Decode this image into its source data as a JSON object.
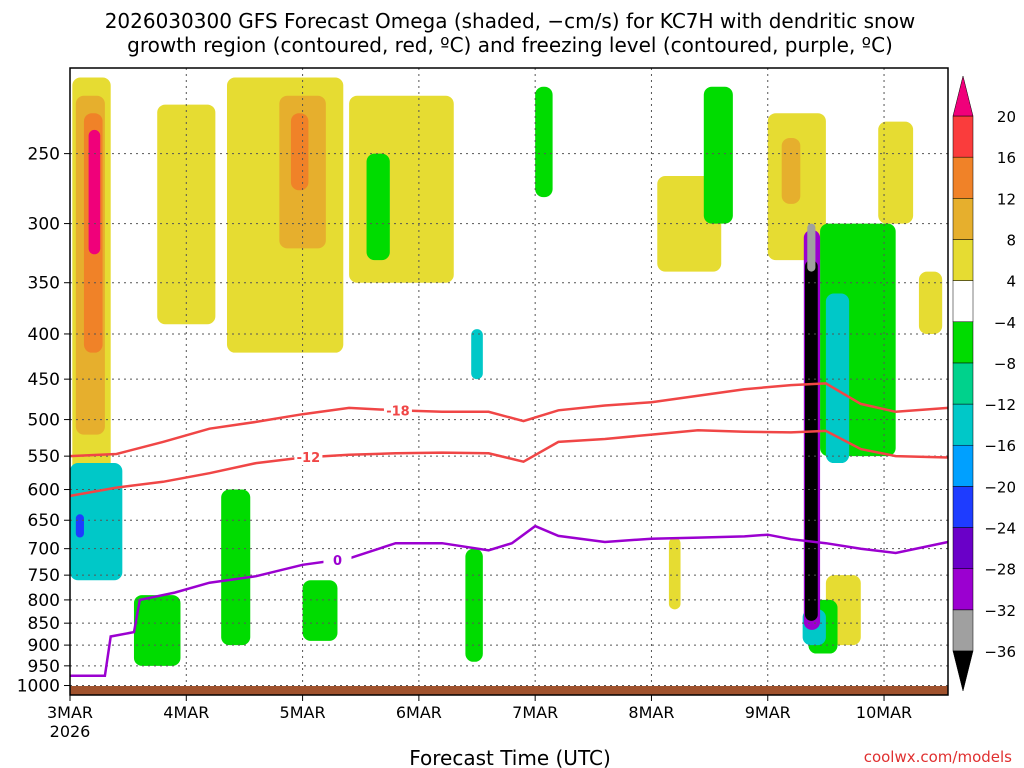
{
  "chart_data": {
    "type": "heatmap",
    "title_line1": "2026030300 GFS Forecast Omega (shaded, −cm/s) for KC7H with dendritic snow",
    "title_line2": "growth region (contoured, red, ºC) and freezing level (contoured, purple, ºC)",
    "xlabel": "Forecast Time (UTC)",
    "ylabel": "",
    "credit": "coolwx.com/models",
    "x_ticks": [
      "3MAR",
      "4MAR",
      "5MAR",
      "6MAR",
      "7MAR",
      "8MAR",
      "9MAR",
      "10MAR"
    ],
    "x_year_label": "2026",
    "x_range_days": [
      0,
      7.55
    ],
    "y_ticks": [
      "250",
      "300",
      "350",
      "400",
      "450",
      "500",
      "550",
      "600",
      "650",
      "700",
      "750",
      "800",
      "850",
      "900",
      "950",
      "1000"
    ],
    "y_tick_values": [
      250,
      300,
      350,
      400,
      450,
      500,
      550,
      600,
      650,
      700,
      750,
      800,
      850,
      900,
      950,
      1000
    ],
    "y_range_hpa": [
      200,
      1025
    ],
    "colorbar": {
      "labels": [
        "20",
        "16",
        "12",
        "8",
        "4",
        "−4",
        "−8",
        "−12",
        "−16",
        "−20",
        "−24",
        "−28",
        "−32",
        "−36"
      ],
      "colors": [
        "#f0f0f0",
        "#a0a0a0",
        "#9b00d0",
        "#6a00c8",
        "#1e3cff",
        "#00a0ff",
        "#00c8c8",
        "#00d28c",
        "#00dc00",
        "#ffffff",
        "#e6dc32",
        "#e6af2d",
        "#f08228",
        "#fa3c3c",
        "#f0007a"
      ],
      "top_arrow_color": "#f0007a",
      "bottom_arrow_color": "#000000"
    },
    "contours": [
      {
        "name": "dgz-minus18",
        "color": "#f04646",
        "label": "-18",
        "label_day": 2.82,
        "points": [
          [
            0,
            550
          ],
          [
            0.4,
            547
          ],
          [
            0.8,
            530
          ],
          [
            1.2,
            512
          ],
          [
            1.6,
            503
          ],
          [
            2.0,
            493
          ],
          [
            2.4,
            485
          ],
          [
            2.8,
            488
          ],
          [
            3.2,
            490
          ],
          [
            3.6,
            490
          ],
          [
            3.9,
            502
          ],
          [
            4.2,
            488
          ],
          [
            4.6,
            482
          ],
          [
            5.0,
            478
          ],
          [
            5.4,
            470
          ],
          [
            5.8,
            462
          ],
          [
            6.2,
            457
          ],
          [
            6.5,
            455
          ],
          [
            6.8,
            480
          ],
          [
            7.1,
            490
          ],
          [
            7.55,
            485
          ]
        ]
      },
      {
        "name": "dgz-minus12",
        "color": "#f04646",
        "label": "-12",
        "label_day": 2.05,
        "points": [
          [
            0,
            610
          ],
          [
            0.4,
            597
          ],
          [
            0.8,
            588
          ],
          [
            1.2,
            575
          ],
          [
            1.6,
            560
          ],
          [
            2.0,
            552
          ],
          [
            2.4,
            548
          ],
          [
            2.8,
            546
          ],
          [
            3.2,
            545
          ],
          [
            3.6,
            546
          ],
          [
            3.9,
            558
          ],
          [
            4.2,
            530
          ],
          [
            4.6,
            526
          ],
          [
            5.0,
            520
          ],
          [
            5.4,
            514
          ],
          [
            5.8,
            516
          ],
          [
            6.2,
            517
          ],
          [
            6.5,
            515
          ],
          [
            6.8,
            540
          ],
          [
            7.1,
            550
          ],
          [
            7.55,
            552
          ]
        ]
      },
      {
        "name": "freezing-level",
        "color": "#9b00d0",
        "label": "0",
        "label_day": 2.3,
        "points": [
          [
            0,
            975
          ],
          [
            0.3,
            975
          ],
          [
            0.35,
            880
          ],
          [
            0.55,
            870
          ],
          [
            0.6,
            800
          ],
          [
            0.9,
            785
          ],
          [
            1.2,
            765
          ],
          [
            1.6,
            752
          ],
          [
            2.0,
            730
          ],
          [
            2.4,
            718
          ],
          [
            2.8,
            690
          ],
          [
            3.2,
            690
          ],
          [
            3.6,
            703
          ],
          [
            3.8,
            690
          ],
          [
            4.0,
            660
          ],
          [
            4.2,
            677
          ],
          [
            4.6,
            688
          ],
          [
            5.0,
            682
          ],
          [
            5.4,
            680
          ],
          [
            5.8,
            678
          ],
          [
            6.0,
            675
          ],
          [
            6.2,
            683
          ],
          [
            6.5,
            690
          ],
          [
            6.8,
            700
          ],
          [
            7.1,
            708
          ],
          [
            7.55,
            688
          ]
        ]
      }
    ],
    "shaded_regions": [
      {
        "name": "omega-d0-upper",
        "color": "#e6dc32",
        "d0": 0.02,
        "d1": 0.35,
        "p0": 205,
        "p1": 640
      },
      {
        "name": "omega-d0-core",
        "color": "#e6af2d",
        "d0": 0.05,
        "d1": 0.3,
        "p0": 215,
        "p1": 520
      },
      {
        "name": "omega-d0-peak",
        "color": "#f08228",
        "d0": 0.12,
        "d1": 0.28,
        "p0": 225,
        "p1": 420
      },
      {
        "name": "omega-d0-max",
        "color": "#f0007a",
        "d0": 0.16,
        "d1": 0.26,
        "p0": 235,
        "p1": 325
      },
      {
        "name": "omega-d1-upper",
        "color": "#e6dc32",
        "d0": 0.75,
        "d1": 1.25,
        "p0": 220,
        "p1": 390
      },
      {
        "name": "omega-d2-upper",
        "color": "#e6dc32",
        "d0": 1.35,
        "d1": 2.35,
        "p0": 205,
        "p1": 420
      },
      {
        "name": "omega-d2-core",
        "color": "#e6af2d",
        "d0": 1.8,
        "d1": 2.2,
        "p0": 215,
        "p1": 320
      },
      {
        "name": "omega-d2-peak",
        "color": "#f08228",
        "d0": 1.9,
        "d1": 2.05,
        "p0": 225,
        "p1": 275
      },
      {
        "name": "omega-d3-upper",
        "color": "#e6dc32",
        "d0": 2.4,
        "d1": 3.3,
        "p0": 215,
        "p1": 350
      },
      {
        "name": "omega-d5-upper",
        "color": "#e6dc32",
        "d0": 5.05,
        "d1": 5.6,
        "p0": 265,
        "p1": 340
      },
      {
        "name": "omega-d6-upper",
        "color": "#e6dc32",
        "d0": 6.0,
        "d1": 6.5,
        "p0": 225,
        "p1": 330
      },
      {
        "name": "omega-d6-core",
        "color": "#e6af2d",
        "d0": 6.12,
        "d1": 6.28,
        "p0": 240,
        "p1": 285
      },
      {
        "name": "omega-d7-upper",
        "color": "#e6dc32",
        "d0": 6.95,
        "d1": 7.25,
        "p0": 230,
        "p1": 300
      },
      {
        "name": "omega-d7-right",
        "color": "#e6dc32",
        "d0": 7.3,
        "d1": 7.5,
        "p0": 340,
        "p1": 400
      },
      {
        "name": "omega-d7-low",
        "color": "#e6dc32",
        "d0": 6.5,
        "d1": 6.8,
        "p0": 750,
        "p1": 900
      },
      {
        "name": "omega-d5-low",
        "color": "#e6dc32",
        "d0": 5.15,
        "d1": 5.25,
        "p0": 680,
        "p1": 820
      },
      {
        "name": "omega-d0-green-low",
        "color": "#00dc00",
        "d0": 0.55,
        "d1": 0.95,
        "p0": 790,
        "p1": 950
      },
      {
        "name": "omega-d0-cyan-low",
        "color": "#00c8c8",
        "d0": 0.0,
        "d1": 0.45,
        "p0": 560,
        "p1": 760
      },
      {
        "name": "omega-d0-blue-low",
        "color": "#1e3cff",
        "d0": 0.05,
        "d1": 0.12,
        "p0": 640,
        "p1": 680
      },
      {
        "name": "omega-d1-green",
        "color": "#00dc00",
        "d0": 1.3,
        "d1": 1.55,
        "p0": 600,
        "p1": 900
      },
      {
        "name": "omega-d2-green",
        "color": "#00dc00",
        "d0": 2.0,
        "d1": 2.3,
        "p0": 760,
        "p1": 890
      },
      {
        "name": "omega-d3-green",
        "color": "#00dc00",
        "d0": 3.4,
        "d1": 3.55,
        "p0": 700,
        "p1": 940
      },
      {
        "name": "omega-d3-teal",
        "color": "#00c8c8",
        "d0": 3.45,
        "d1": 3.55,
        "p0": 395,
        "p1": 450
      },
      {
        "name": "omega-d2-green-upper",
        "color": "#00dc00",
        "d0": 2.55,
        "d1": 2.75,
        "p0": 250,
        "p1": 330
      },
      {
        "name": "omega-d4-green",
        "color": "#00dc00",
        "d0": 4.0,
        "d1": 4.15,
        "p0": 210,
        "p1": 280
      },
      {
        "name": "omega-d5-green",
        "color": "#00dc00",
        "d0": 5.45,
        "d1": 5.7,
        "p0": 210,
        "p1": 300
      },
      {
        "name": "omega-d6-green",
        "color": "#00dc00",
        "d0": 6.45,
        "d1": 7.1,
        "p0": 300,
        "p1": 550
      },
      {
        "name": "omega-d6-teal",
        "color": "#00c8c8",
        "d0": 6.5,
        "d1": 6.7,
        "p0": 360,
        "p1": 560
      },
      {
        "name": "omega-d6-green-low",
        "color": "#00dc00",
        "d0": 6.35,
        "d1": 6.6,
        "p0": 800,
        "p1": 920
      },
      {
        "name": "omega-d6-teal-low",
        "color": "#00c8c8",
        "d0": 6.3,
        "d1": 6.5,
        "p0": 820,
        "p1": 900
      },
      {
        "name": "omega-d6-purple-col",
        "color": "#9b00d0",
        "d0": 6.31,
        "d1": 6.45,
        "p0": 305,
        "p1": 865
      },
      {
        "name": "omega-d6-black-col",
        "color": "#000000",
        "d0": 6.32,
        "d1": 6.43,
        "p0": 330,
        "p1": 845
      },
      {
        "name": "omega-d6-gray-cap",
        "color": "#a0a0a0",
        "d0": 6.34,
        "d1": 6.41,
        "p0": 300,
        "p1": 340
      }
    ],
    "terrain_color": "#a0522d"
  }
}
